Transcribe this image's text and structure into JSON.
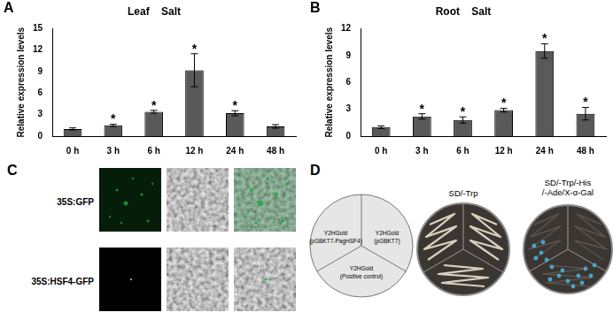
{
  "chart_data": [
    {
      "panel": "A",
      "type": "bar",
      "title": "Leaf    Salt",
      "y_label": "Relative expression levels",
      "categories": [
        "0 h",
        "3 h",
        "6 h",
        "12 h",
        "24 h",
        "48 h"
      ],
      "values": [
        1.0,
        1.5,
        3.4,
        9.2,
        3.2,
        1.35
      ],
      "error": [
        0.15,
        0.15,
        0.2,
        2.3,
        0.35,
        0.25
      ],
      "annotations": [
        null,
        "*",
        "*",
        "*",
        "*",
        null
      ],
      "color": "#595959",
      "ylim": [
        0,
        15
      ],
      "yticks": [
        0,
        3,
        6,
        9,
        12,
        15
      ],
      "grid": false
    },
    {
      "panel": "B",
      "type": "bar",
      "title": "Root    Salt",
      "y_label": "Relative expression levels",
      "categories": [
        "0 h",
        "3 h",
        "6 h",
        "12 h",
        "24 h",
        "48 h"
      ],
      "values": [
        1.0,
        2.2,
        1.8,
        2.9,
        9.5,
        2.5
      ],
      "error": [
        0.15,
        0.3,
        0.35,
        0.2,
        0.8,
        0.7
      ],
      "annotations": [
        null,
        "*",
        "*",
        "*",
        "*",
        "*"
      ],
      "color": "#595959",
      "ylim": [
        0,
        12
      ],
      "yticks": [
        0,
        3,
        6,
        9,
        12
      ],
      "grid": false
    }
  ],
  "panels": [
    {
      "panel": "C",
      "rows": [
        {
          "label": "35S:GFP"
        },
        {
          "label": "35S:HSF4-GFP"
        }
      ]
    },
    {
      "panel": "D",
      "sectors": [
        [
          "Y2HGold",
          "(pGBKT7-PagHSF4)"
        ],
        [
          "Y2HGold",
          "(pGBKT7)"
        ],
        [
          "Y2HGold",
          "(Positive control)"
        ]
      ],
      "plates": [
        {
          "label": [
            "SD/-Trp"
          ]
        },
        {
          "label": [
            "SD/-Trp/-His",
            "/-Ade/X-α-Gal"
          ]
        }
      ]
    }
  ]
}
